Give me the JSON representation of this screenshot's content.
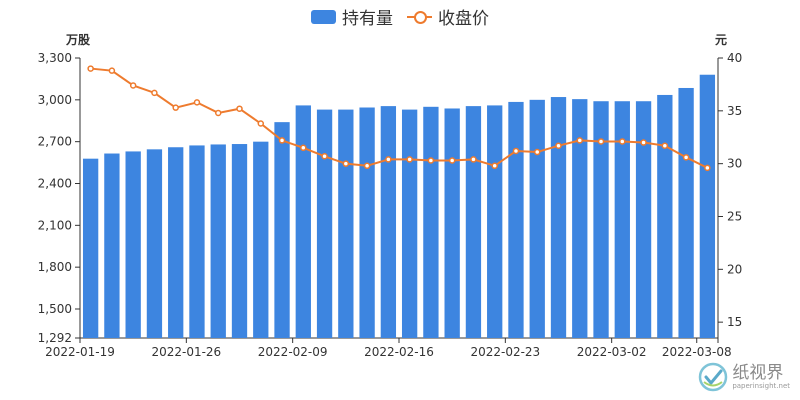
{
  "legend": {
    "bar_label": "持有量",
    "line_label": "收盘价"
  },
  "units": {
    "left": "万股",
    "right": "元"
  },
  "watermark": {
    "title": "纸视界",
    "subtitle": "paperinsight.net"
  },
  "colors": {
    "bar": "#3d85e0",
    "line": "#ee7b2e",
    "axis_text": "#333333"
  },
  "chart_data": {
    "type": "bar+line",
    "categories": [
      "2022-01-19",
      "2022-01-20",
      "2022-01-21",
      "2022-01-24",
      "2022-01-25",
      "2022-01-26",
      "2022-01-27",
      "2022-01-28",
      "2022-02-07",
      "2022-02-08",
      "2022-02-09",
      "2022-02-10",
      "2022-02-11",
      "2022-02-14",
      "2022-02-15",
      "2022-02-16",
      "2022-02-17",
      "2022-02-18",
      "2022-02-21",
      "2022-02-22",
      "2022-02-23",
      "2022-02-24",
      "2022-02-25",
      "2022-02-28",
      "2022-03-01",
      "2022-03-02",
      "2022-03-03",
      "2022-03-04",
      "2022-03-07",
      "2022-03-08"
    ],
    "x_tick_labels": [
      "2022-01-19",
      "2022-01-26",
      "2022-02-09",
      "2022-02-16",
      "2022-02-23",
      "2022-03-02",
      "2022-03-08"
    ],
    "series": [
      {
        "name": "持有量",
        "type": "bar",
        "axis": "left",
        "values": [
          2578,
          2615,
          2630,
          2645,
          2660,
          2673,
          2680,
          2683,
          2700,
          2840,
          2960,
          2930,
          2930,
          2945,
          2955,
          2930,
          2950,
          2938,
          2955,
          2960,
          2985,
          3000,
          3020,
          3005,
          2990,
          2990,
          2990,
          3035,
          3085,
          3180
        ]
      },
      {
        "name": "收盘价",
        "type": "line",
        "axis": "right",
        "values": [
          39.0,
          38.8,
          37.4,
          36.7,
          35.3,
          35.8,
          34.8,
          35.2,
          33.8,
          32.2,
          31.5,
          30.7,
          30.0,
          29.8,
          30.4,
          30.4,
          30.3,
          30.3,
          30.4,
          29.8,
          31.2,
          31.1,
          31.7,
          32.2,
          32.1,
          32.1,
          32.0,
          31.7,
          30.6,
          29.6
        ]
      }
    ],
    "y_left": {
      "ticks": [
        "1,292",
        "1,500",
        "1,800",
        "2,100",
        "2,400",
        "2,700",
        "3,000",
        "3,300"
      ],
      "tick_values": [
        1292,
        1500,
        1800,
        2100,
        2400,
        2700,
        3000,
        3300
      ],
      "min": 1292,
      "max": 3300
    },
    "y_right": {
      "ticks": [
        "15",
        "20",
        "25",
        "30",
        "35",
        "40"
      ],
      "tick_values": [
        15,
        20,
        25,
        30,
        35,
        40
      ],
      "min": 13.5,
      "max": 40
    },
    "legend_position": "top-center",
    "grid": false
  }
}
